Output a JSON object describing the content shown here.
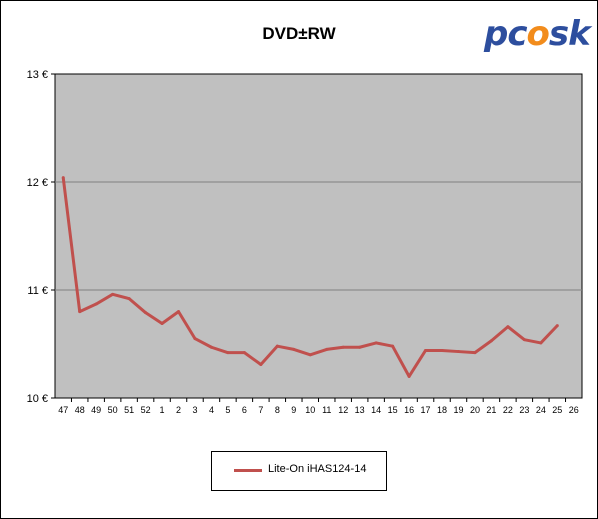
{
  "logo": {
    "text_main": "pc",
    "text_flame": "o",
    "text_end": "sk"
  },
  "chart_data": {
    "type": "line",
    "title": "DVD±RW",
    "xlabel": "",
    "ylabel": "",
    "categories": [
      "47",
      "48",
      "49",
      "50",
      "51",
      "52",
      "1",
      "2",
      "3",
      "4",
      "5",
      "6",
      "7",
      "8",
      "9",
      "10",
      "11",
      "12",
      "13",
      "14",
      "15",
      "16",
      "17",
      "18",
      "19",
      "20",
      "21",
      "22",
      "23",
      "24",
      "25",
      "26"
    ],
    "ylim": [
      10,
      13
    ],
    "yticks": [
      10,
      11,
      12,
      13
    ],
    "ytick_labels": [
      "10 €",
      "11 €",
      "12 €",
      "13 €"
    ],
    "grid": true,
    "legend": "bottom-center",
    "series": [
      {
        "name": "Lite-On  iHAS124-14",
        "color": "#c0504d",
        "values": [
          12.04,
          10.8,
          10.87,
          10.96,
          10.92,
          10.79,
          10.69,
          10.8,
          10.55,
          10.47,
          10.42,
          10.42,
          10.31,
          10.48,
          10.45,
          10.4,
          10.45,
          10.47,
          10.47,
          10.51,
          10.48,
          10.2,
          10.44,
          10.44,
          10.43,
          10.42,
          10.53,
          10.66,
          10.54,
          10.51,
          10.67,
          null
        ]
      }
    ]
  }
}
